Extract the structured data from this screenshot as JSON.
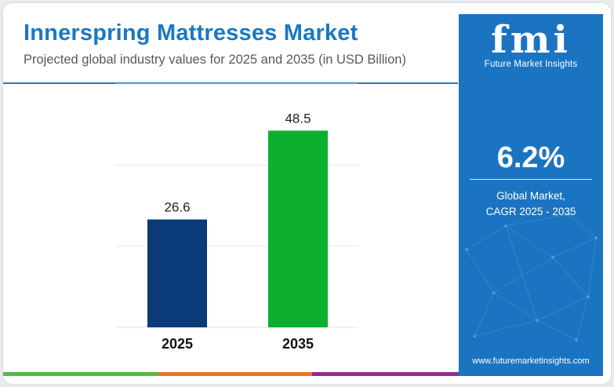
{
  "header": {
    "title": "Innerspring Mattresses Market",
    "subtitle": "Projected global industry values for 2025 and 2035 (in USD Billion)"
  },
  "chart_data": {
    "type": "bar",
    "categories": [
      "2025",
      "2035"
    ],
    "values": [
      26.6,
      48.5
    ],
    "data_labels": [
      "26.6",
      "48.5"
    ],
    "colors": [
      "#0b3a78",
      "#0daf2e"
    ],
    "grid": true,
    "ylim": [
      0,
      60
    ]
  },
  "sidebar": {
    "logo_text": "fmi",
    "brand_name": "Future Market Insights",
    "cagr_value": "6.2%",
    "cagr_label_line1": "Global Market,",
    "cagr_label_line2": "CAGR 2025 - 2035",
    "website": "www.futuremarketinsights.com"
  },
  "theme": {
    "title_color": "#1a78c2",
    "panel_color": "#1b74c1",
    "bottom_bar_colors": [
      "#55b847",
      "#e8752b",
      "#8b2f8f"
    ]
  }
}
